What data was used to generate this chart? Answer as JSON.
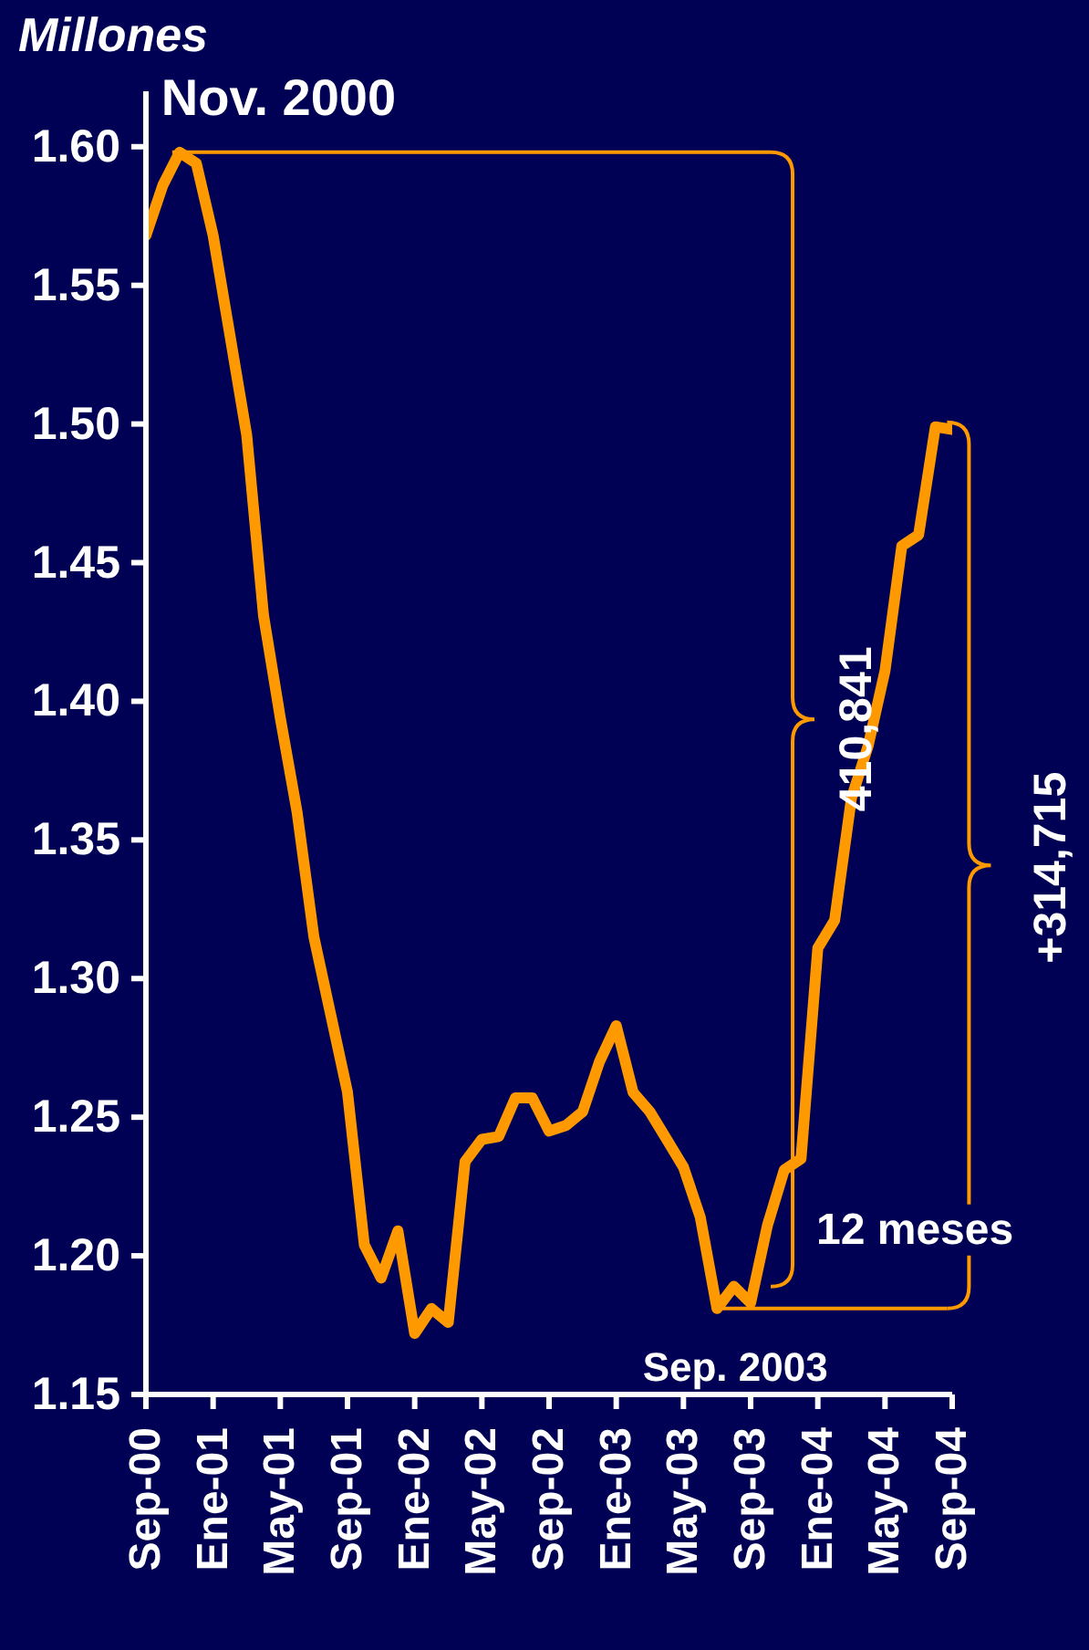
{
  "chart_data": {
    "type": "line",
    "ylabel": "Millones",
    "categories": [
      "Sep-00",
      null,
      null,
      null,
      "Ene-01",
      null,
      null,
      null,
      "May-01",
      null,
      null,
      null,
      "Sep-01",
      null,
      null,
      null,
      "Ene-02",
      null,
      null,
      null,
      "May-02",
      null,
      null,
      null,
      "Sep-02",
      null,
      null,
      null,
      "Ene-03",
      null,
      null,
      null,
      "May-03",
      null,
      null,
      null,
      "Sep-03",
      null,
      null,
      null,
      "Ene-04",
      null,
      null,
      null,
      "May-04",
      null,
      null,
      null,
      "Sep-04"
    ],
    "series": [
      {
        "color": "#ff9900",
        "values": [
          1.568,
          1.586,
          1.598,
          1.594,
          1.568,
          1.532,
          1.496,
          1.431,
          1.394,
          1.36,
          1.315,
          1.287,
          1.259,
          1.204,
          1.192,
          1.209,
          1.172,
          1.181,
          1.176,
          1.234,
          1.242,
          1.243,
          1.257,
          1.257,
          1.245,
          1.247,
          1.252,
          1.27,
          1.283,
          1.259,
          1.252,
          1.242,
          1.232,
          1.214,
          1.181,
          1.189,
          1.183,
          1.211,
          1.231,
          1.235,
          1.311,
          1.321,
          1.365,
          1.384,
          1.411,
          1.456,
          1.46,
          1.499,
          1.498
        ]
      }
    ],
    "ylim": [
      1.15,
      1.62
    ],
    "yticks": [
      {
        "value": 1.15,
        "label": "1.15"
      },
      {
        "value": 1.2,
        "label": "1.20"
      },
      {
        "value": 1.25,
        "label": "1.25"
      },
      {
        "value": 1.3,
        "label": "1.30"
      },
      {
        "value": 1.35,
        "label": "1.35"
      },
      {
        "value": 1.4,
        "label": "1.40"
      },
      {
        "value": 1.45,
        "label": "1.45"
      },
      {
        "value": 1.5,
        "label": "1.50"
      },
      {
        "value": 1.55,
        "label": "1.55"
      },
      {
        "value": 1.6,
        "label": "1.60"
      }
    ],
    "annotations": [
      "Nov. 2000",
      "410,841",
      "+314,715",
      {
        "text": "12 meses",
        "x": "Sep-03",
        "y": 1.183
      },
      "Sep. 2003"
    ]
  }
}
